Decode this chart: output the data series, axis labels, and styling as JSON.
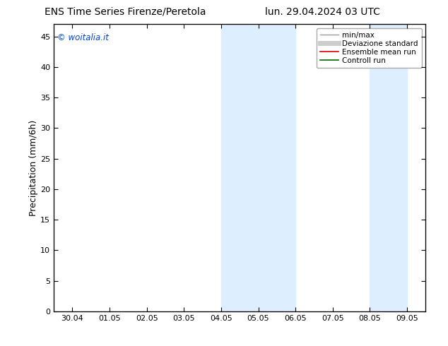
{
  "title_left": "ENS Time Series Firenze/Peretola",
  "title_right": "lun. 29.04.2024 03 UTC",
  "ylabel": "Precipitation (mm/6h)",
  "watermark": "© woitalia.it",
  "watermark_color": "#0044cc",
  "background_color": "#ffffff",
  "plot_bg_color": "#ffffff",
  "shaded_bands": [
    {
      "xmin": 4.0,
      "xmax": 6.0,
      "color": "#ddeeff"
    },
    {
      "xmin": 8.0,
      "xmax": 9.0,
      "color": "#ddeeff"
    }
  ],
  "xlim": [
    -0.5,
    9.5
  ],
  "ylim": [
    0,
    47
  ],
  "yticks": [
    0,
    5,
    10,
    15,
    20,
    25,
    30,
    35,
    40,
    45
  ],
  "xtick_labels": [
    "30.04",
    "01.05",
    "02.05",
    "03.05",
    "04.05",
    "05.05",
    "06.05",
    "07.05",
    "08.05",
    "09.05"
  ],
  "xtick_positions": [
    0,
    1,
    2,
    3,
    4,
    5,
    6,
    7,
    8,
    9
  ],
  "legend_items": [
    {
      "label": "min/max",
      "color": "#999999",
      "lw": 1.0
    },
    {
      "label": "Deviazione standard",
      "color": "#cccccc",
      "lw": 5.0
    },
    {
      "label": "Ensemble mean run",
      "color": "#dd0000",
      "lw": 1.2
    },
    {
      "label": "Controll run",
      "color": "#006600",
      "lw": 1.2
    }
  ],
  "title_fontsize": 10,
  "tick_fontsize": 8,
  "ylabel_fontsize": 9,
  "legend_fontsize": 7.5
}
